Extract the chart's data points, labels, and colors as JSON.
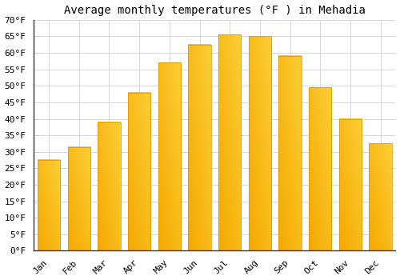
{
  "title": "Average monthly temperatures (°F ) in Mehadia",
  "months": [
    "Jan",
    "Feb",
    "Mar",
    "Apr",
    "May",
    "Jun",
    "Jul",
    "Aug",
    "Sep",
    "Oct",
    "Nov",
    "Dec"
  ],
  "values": [
    27.5,
    31.5,
    39.0,
    48.0,
    57.0,
    62.5,
    65.5,
    65.0,
    59.0,
    49.5,
    40.0,
    32.5
  ],
  "bar_color_bottom": "#F5A800",
  "bar_color_top": "#FFD700",
  "bar_color_left": "#F5A800",
  "bar_color_right": "#FFE066",
  "background_color": "#FFFFFF",
  "grid_color": "#D8D8D8",
  "ylim": [
    0,
    70
  ],
  "yticks": [
    0,
    5,
    10,
    15,
    20,
    25,
    30,
    35,
    40,
    45,
    50,
    55,
    60,
    65,
    70
  ],
  "ytick_labels": [
    "0°F",
    "5°F",
    "10°F",
    "15°F",
    "20°F",
    "25°F",
    "30°F",
    "35°F",
    "40°F",
    "45°F",
    "50°F",
    "55°F",
    "60°F",
    "65°F",
    "70°F"
  ],
  "title_fontsize": 10,
  "tick_fontsize": 8,
  "bar_width": 0.75
}
